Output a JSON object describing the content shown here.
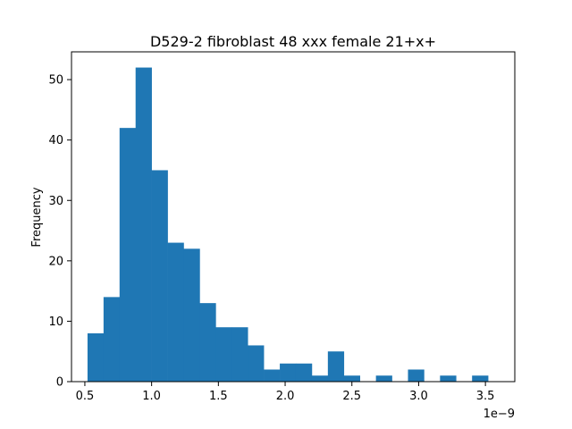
{
  "chart_data": {
    "type": "bar",
    "title": "D529-2 fibroblast 48 xxx female 21+x+",
    "xlabel": "",
    "ylabel": "Frequency",
    "x_offset_label": "1e−9",
    "xlim": [
      0.4,
      3.72
    ],
    "ylim": [
      0,
      54.6
    ],
    "xticks": [
      0.5,
      1.0,
      1.5,
      2.0,
      2.5,
      3.0,
      3.5
    ],
    "xtick_labels": [
      "0.5",
      "1.0",
      "1.5",
      "2.0",
      "2.5",
      "3.0",
      "3.5"
    ],
    "yticks": [
      0,
      10,
      20,
      30,
      40,
      50
    ],
    "ytick_labels": [
      "0",
      "10",
      "20",
      "30",
      "40",
      "50"
    ],
    "bin_edges": [
      0.52,
      0.64,
      0.76,
      0.88,
      1.0,
      1.12,
      1.24,
      1.36,
      1.48,
      1.6,
      1.72,
      1.84,
      1.96,
      2.08,
      2.2,
      2.32,
      2.44,
      2.56,
      2.68,
      2.8,
      2.92,
      3.04,
      3.16,
      3.28,
      3.4,
      3.52
    ],
    "values": [
      8,
      14,
      42,
      52,
      35,
      23,
      22,
      13,
      9,
      9,
      6,
      2,
      3,
      3,
      1,
      5,
      1,
      0,
      1,
      0,
      2,
      0,
      1,
      0,
      1
    ],
    "bar_color": "#1f77b4",
    "grid": false,
    "legend": "none"
  }
}
